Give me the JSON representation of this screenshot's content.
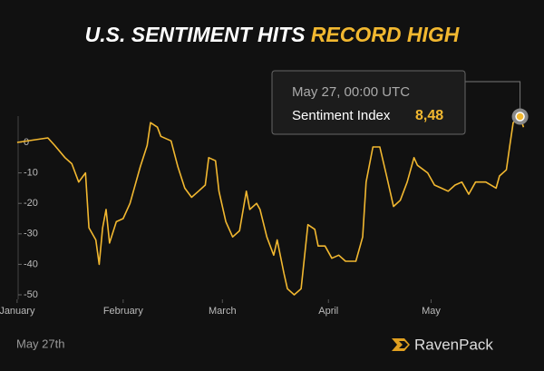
{
  "chart_data": {
    "type": "line",
    "title": "U.S. SENTIMENT HITS",
    "title_highlight": "RECORD HIGH",
    "footer_date": "May 27th",
    "brand": "RavenPack",
    "tooltip": {
      "title": "May 27, 00:00 UTC",
      "value_label": "8,48"
    },
    "xlim": [
      -4,
      155
    ],
    "xticks": [
      {
        "value": 1,
        "label": "January"
      },
      {
        "value": 32,
        "label": "February"
      },
      {
        "value": 61,
        "label": "March"
      },
      {
        "value": 92,
        "label": "April"
      },
      {
        "value": 122,
        "label": "May"
      }
    ],
    "ylim": [
      -50,
      10
    ],
    "yticks": [
      0,
      -10,
      -20,
      -30,
      -40,
      -50
    ],
    "x": [
      1,
      10,
      12,
      15,
      17,
      19,
      21,
      22,
      24,
      25,
      26,
      27,
      28,
      30,
      32,
      34,
      37,
      39,
      40,
      42,
      43,
      46,
      48,
      50,
      52,
      54,
      56,
      57,
      59,
      60,
      62,
      64,
      66,
      68,
      69,
      71,
      72,
      74,
      76,
      77,
      79,
      80,
      82,
      84,
      86,
      88,
      89,
      91,
      93,
      95,
      97,
      100,
      102,
      103,
      105,
      107,
      109,
      111,
      113,
      115,
      117,
      118,
      121,
      123,
      125,
      127,
      129,
      131,
      133,
      135,
      138,
      141,
      142,
      144,
      145,
      146,
      148,
      149
    ],
    "series": [
      {
        "name": "Sentiment Index",
        "color": "#f2b830",
        "values": [
          0,
          1.5,
          -1,
          -5,
          -7,
          -13,
          -10,
          -28,
          -32,
          -40,
          -28,
          -22,
          -33,
          -26,
          -25,
          -20,
          -8,
          -1,
          6.5,
          5,
          2,
          0.5,
          -8,
          -15,
          -18,
          -16,
          -14,
          -5,
          -6,
          -16,
          -26,
          -31,
          -29,
          -16,
          -22,
          -20,
          -22,
          -31,
          -37,
          -32,
          -43,
          -48,
          -50,
          -48,
          -27,
          -28.5,
          -34,
          -34,
          -38,
          -37,
          -39,
          -39,
          -31,
          -13,
          -1.5,
          -1.5,
          -11,
          -21,
          -19,
          -13,
          -5,
          -7.5,
          -10,
          -14,
          -15,
          -16,
          -14,
          -13,
          -17,
          -13,
          -13,
          -15,
          -11,
          -9,
          -1,
          6.5,
          8.48,
          5
        ]
      }
    ]
  }
}
